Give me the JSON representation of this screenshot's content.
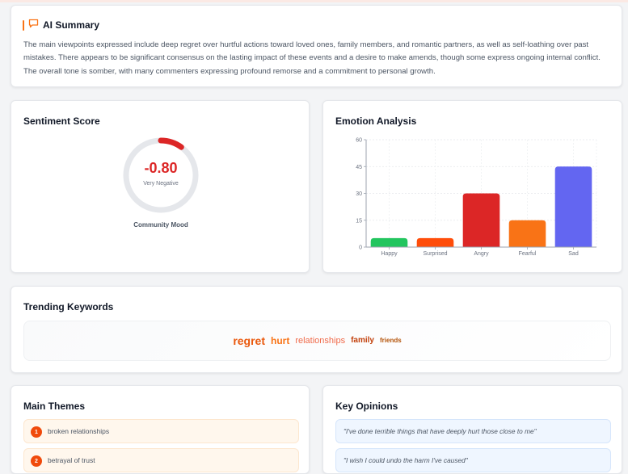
{
  "summary": {
    "title": "AI Summary",
    "icon": "chat-bubble-icon",
    "accent": "#f97316",
    "text": "The main viewpoints expressed include deep regret over hurtful actions toward loved ones, family members, and romantic partners, as well as self-loathing over past mistakes. There appears to be significant consensus on the lasting impact of these events and a desire to make amends, though some express ongoing internal conflict. The overall tone is somber, with many commenters expressing profound remorse and a commitment to personal growth."
  },
  "sentiment": {
    "title": "Sentiment Score",
    "score": "-0.80",
    "score_value": -0.8,
    "label": "Very Negative",
    "caption": "Community Mood",
    "color": "#dc2626",
    "track_color": "#e5e7eb"
  },
  "emotion": {
    "title": "Emotion Analysis"
  },
  "chart_data": {
    "type": "bar",
    "title": "Emotion Analysis",
    "categories": [
      "Happy",
      "Surprised",
      "Angry",
      "Fearful",
      "Sad"
    ],
    "values": [
      5,
      5,
      30,
      15,
      45
    ],
    "colors": [
      "#22c55e",
      "#ff4d0a",
      "#dc2626",
      "#f97316",
      "#6366f1"
    ],
    "xlabel": "",
    "ylabel": "",
    "ylim": [
      0,
      60
    ],
    "yticks": [
      0,
      15,
      30,
      45,
      60
    ],
    "grid": true,
    "legend": "none"
  },
  "trending": {
    "title": "Trending Keywords",
    "keywords": [
      "regret",
      "hurt",
      "relationships",
      "family",
      "friends"
    ]
  },
  "themes": {
    "title": "Main Themes",
    "items": [
      {
        "num": "1",
        "label": "broken relationships"
      },
      {
        "num": "2",
        "label": "betrayal of trust"
      }
    ]
  },
  "opinions": {
    "title": "Key Opinions",
    "items": [
      "\"I've done terrible things that have deeply hurt those close to me\"",
      "\"I wish I could undo the harm I've caused\""
    ]
  }
}
